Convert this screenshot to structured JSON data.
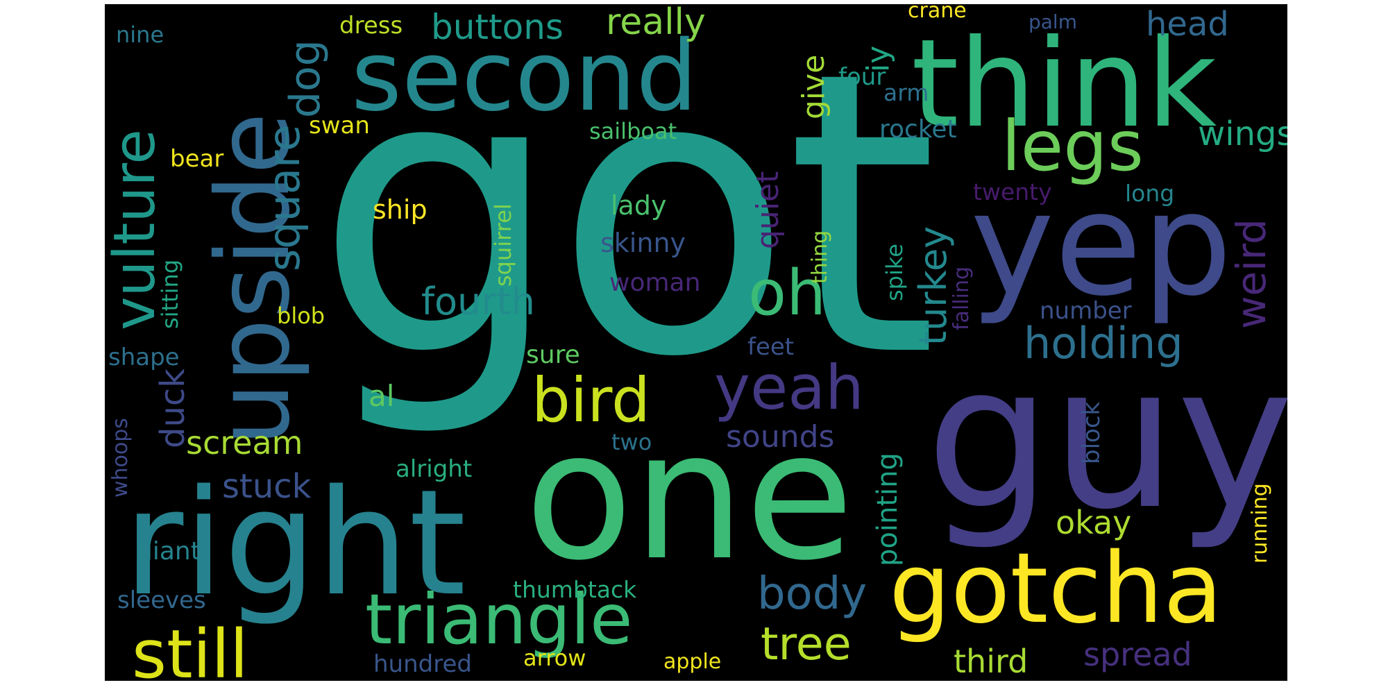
{
  "wordcloud": {
    "background": "#000000",
    "words": [
      {
        "text": "got",
        "color": "#1f9a8a"
      },
      {
        "text": "one",
        "color": "#3bbb75"
      },
      {
        "text": "guy",
        "color": "#433e85"
      },
      {
        "text": "right",
        "color": "#26828e"
      },
      {
        "text": "think",
        "color": "#2fb47c"
      },
      {
        "text": "yep",
        "color": "#3e4a89"
      },
      {
        "text": "second",
        "color": "#24878e"
      },
      {
        "text": "upside",
        "color": "#31688e"
      },
      {
        "text": "gotcha",
        "color": "#fde725"
      },
      {
        "text": "triangle",
        "color": "#3bbb75"
      },
      {
        "text": "still",
        "color": "#dde318"
      },
      {
        "text": "legs",
        "color": "#6ccd5a"
      },
      {
        "text": "oh",
        "color": "#3bbb75"
      },
      {
        "text": "bird",
        "color": "#cae11f"
      },
      {
        "text": "yeah",
        "color": "#443983"
      },
      {
        "text": "vulture",
        "color": "#1f988b"
      },
      {
        "text": "holding",
        "color": "#2d708e"
      },
      {
        "text": "body",
        "color": "#31688e"
      },
      {
        "text": "tree",
        "color": "#b5de2b"
      },
      {
        "text": "dog",
        "color": "#2a788e"
      },
      {
        "text": "square",
        "color": "#2a788e"
      },
      {
        "text": "weird",
        "color": "#482878"
      },
      {
        "text": "wings",
        "color": "#25ab82"
      },
      {
        "text": "really",
        "color": "#86d549"
      },
      {
        "text": "buttons",
        "color": "#1f9a8a"
      },
      {
        "text": "head",
        "color": "#31688e"
      },
      {
        "text": "fourth",
        "color": "#228c8d"
      },
      {
        "text": "turkey",
        "color": "#23898e"
      },
      {
        "text": "quiet",
        "color": "#482475"
      },
      {
        "text": "give",
        "color": "#a2da37"
      },
      {
        "text": "duck",
        "color": "#3e4a89"
      },
      {
        "text": "scream",
        "color": "#a8db34"
      },
      {
        "text": "sounds",
        "color": "#414487"
      },
      {
        "text": "spread",
        "color": "#46307e"
      },
      {
        "text": "third",
        "color": "#a8db34"
      },
      {
        "text": "stuck",
        "color": "#3b528b"
      },
      {
        "text": "okay",
        "color": "#addc30"
      },
      {
        "text": "pointing",
        "color": "#20a386"
      },
      {
        "text": "al",
        "color": "#5ec962"
      },
      {
        "text": "sure",
        "color": "#5ec962"
      },
      {
        "text": "ship",
        "color": "#fde725"
      },
      {
        "text": "lady",
        "color": "#4ac16d"
      },
      {
        "text": "skinny",
        "color": "#39568c"
      },
      {
        "text": "woman",
        "color": "#482878"
      },
      {
        "text": "squirrel",
        "color": "#7fd34e"
      },
      {
        "text": "sitting",
        "color": "#22a785"
      },
      {
        "text": "blob",
        "color": "#d2e21b"
      },
      {
        "text": "shape",
        "color": "#2d708e"
      },
      {
        "text": "feet",
        "color": "#3b528b"
      },
      {
        "text": "number",
        "color": "#3b528b"
      },
      {
        "text": "twenty",
        "color": "#481b6d"
      },
      {
        "text": "long",
        "color": "#25858e"
      },
      {
        "text": "falling",
        "color": "#472c7a"
      },
      {
        "text": "spike",
        "color": "#20a386"
      },
      {
        "text": "thing",
        "color": "#95d840"
      },
      {
        "text": "rocket",
        "color": "#2a788e"
      },
      {
        "text": "four",
        "color": "#1f9a8a"
      },
      {
        "text": "arm",
        "color": "#2d708e"
      },
      {
        "text": "iy",
        "color": "#22a785"
      },
      {
        "text": "crane",
        "color": "#fde725"
      },
      {
        "text": "palm",
        "color": "#39568c"
      },
      {
        "text": "dress",
        "color": "#bddf26"
      },
      {
        "text": "nine",
        "color": "#2a788e"
      },
      {
        "text": "swan",
        "color": "#e5e419"
      },
      {
        "text": "bear",
        "color": "#f1e51d"
      },
      {
        "text": "sailboat",
        "color": "#4ac16d"
      },
      {
        "text": "alright",
        "color": "#29af7f"
      },
      {
        "text": "two",
        "color": "#2c728e"
      },
      {
        "text": "whoops",
        "color": "#3e4a89"
      },
      {
        "text": "giant",
        "color": "#25848e"
      },
      {
        "text": "sleeves",
        "color": "#31688e"
      },
      {
        "text": "thumbtack",
        "color": "#2ab07f"
      },
      {
        "text": "hundred",
        "color": "#39568c"
      },
      {
        "text": "arrow",
        "color": "#e2e418"
      },
      {
        "text": "apple",
        "color": "#f1e51d"
      },
      {
        "text": "block",
        "color": "#39568c"
      },
      {
        "text": "running",
        "color": "#fde725"
      }
    ]
  }
}
